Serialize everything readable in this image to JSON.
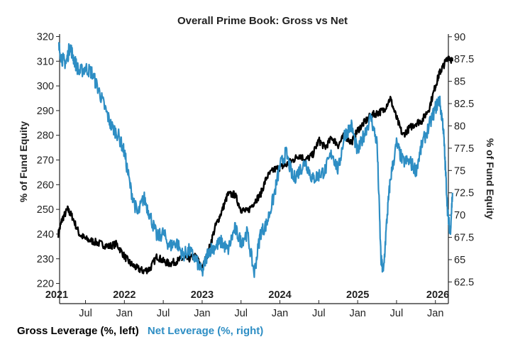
{
  "chart_data": {
    "type": "line",
    "title": "Overall Prime Book: Gross vs Net",
    "ylabel_left": "% of Fund Equity",
    "ylabel_right": "% of Fund Equity",
    "y_left": {
      "range": [
        217,
        321
      ],
      "ticks": [
        220,
        230,
        240,
        250,
        260,
        270,
        280,
        290,
        300,
        310,
        320
      ]
    },
    "y_right": {
      "range": [
        61.5,
        90.3
      ],
      "ticks": [
        62.5,
        65,
        67.5,
        70,
        72.5,
        75,
        77.5,
        80,
        82.5,
        85,
        87.5,
        90
      ],
      "tick_labels": [
        "62.5",
        "65",
        "67.5",
        "70",
        "72.5",
        "75",
        "77.5",
        "80",
        "82.5",
        "85",
        "87.5",
        "90"
      ]
    },
    "x_range": [
      "2021-03",
      "2026-03"
    ],
    "month_ticks": [
      {
        "label": "Jul",
        "t": 2021.5
      },
      {
        "label": "Jan",
        "t": 2022.0
      },
      {
        "label": "Jul",
        "t": 2022.5
      },
      {
        "label": "Jan",
        "t": 2023.0
      },
      {
        "label": "Jul",
        "t": 2023.5
      },
      {
        "label": "Jan",
        "t": 2024.0
      },
      {
        "label": "Jul",
        "t": 2024.5
      },
      {
        "label": "Jan",
        "t": 2025.0
      },
      {
        "label": "Jul",
        "t": 2025.5
      },
      {
        "label": "Jan",
        "t": 2026.0
      }
    ],
    "year_labels": [
      {
        "label": "2021",
        "t": 2021.13
      },
      {
        "label": "2022",
        "t": 2022.0
      },
      {
        "label": "2023",
        "t": 2023.0
      },
      {
        "label": "2024",
        "t": 2024.0
      },
      {
        "label": "2025",
        "t": 2025.0
      },
      {
        "label": "2026",
        "t": 2026.03
      }
    ],
    "series": [
      {
        "name": "Gross Leverage (%, left)",
        "axis": "left",
        "color": "#000000",
        "x": [
          2021.15,
          2021.2,
          2021.27,
          2021.33,
          2021.42,
          2021.5,
          2021.6,
          2021.7,
          2021.8,
          2021.9,
          2022.0,
          2022.08,
          2022.17,
          2022.25,
          2022.33,
          2022.42,
          2022.5,
          2022.58,
          2022.67,
          2022.75,
          2022.83,
          2022.92,
          2023.0,
          2023.08,
          2023.17,
          2023.25,
          2023.33,
          2023.42,
          2023.5,
          2023.58,
          2023.67,
          2023.75,
          2023.83,
          2023.92,
          2024.0,
          2024.08,
          2024.17,
          2024.25,
          2024.33,
          2024.42,
          2024.5,
          2024.58,
          2024.67,
          2024.75,
          2024.83,
          2024.92,
          2025.0,
          2025.08,
          2025.17,
          2025.25,
          2025.33,
          2025.42,
          2025.5,
          2025.58,
          2025.67,
          2025.75,
          2025.83,
          2025.92,
          2026.0,
          2026.05,
          2026.1,
          2026.17,
          2026.22
        ],
        "values": [
          240,
          246,
          250,
          247,
          240,
          238,
          237,
          236,
          235,
          236,
          231,
          228,
          226,
          225,
          226,
          231,
          229,
          228,
          229,
          230,
          230,
          231,
          226,
          233,
          243,
          249,
          256,
          256,
          250,
          249,
          253,
          256,
          263,
          266,
          267,
          268,
          270,
          272,
          270,
          272,
          278,
          275,
          279,
          276,
          280,
          277,
          282,
          285,
          288,
          289,
          290,
          295,
          287,
          280,
          283,
          285,
          286,
          291,
          300,
          305,
          308,
          312,
          310
        ]
      },
      {
        "name": "Net Leverage (%, right)",
        "axis": "right",
        "color": "#2e8ec4",
        "x": [
          2021.15,
          2021.2,
          2021.25,
          2021.3,
          2021.35,
          2021.42,
          2021.5,
          2021.58,
          2021.67,
          2021.75,
          2021.83,
          2021.92,
          2022.0,
          2022.08,
          2022.17,
          2022.25,
          2022.33,
          2022.42,
          2022.5,
          2022.58,
          2022.67,
          2022.75,
          2022.83,
          2022.92,
          2023.0,
          2023.08,
          2023.17,
          2023.25,
          2023.33,
          2023.42,
          2023.5,
          2023.58,
          2023.67,
          2023.75,
          2023.83,
          2023.92,
          2024.0,
          2024.08,
          2024.17,
          2024.25,
          2024.33,
          2024.42,
          2024.5,
          2024.58,
          2024.67,
          2024.75,
          2024.83,
          2024.92,
          2025.0,
          2025.08,
          2025.17,
          2025.25,
          2025.3,
          2025.33,
          2025.38,
          2025.42,
          2025.5,
          2025.58,
          2025.67,
          2025.75,
          2025.83,
          2025.92,
          2026.0,
          2026.05,
          2026.1,
          2026.13,
          2026.16,
          2026.19,
          2026.22
        ],
        "values": [
          89,
          87.5,
          87,
          89,
          87.5,
          86,
          86.5,
          86,
          84,
          82,
          80,
          79,
          77,
          73,
          70,
          72,
          70,
          67.5,
          68,
          66.5,
          67,
          65.5,
          66,
          65,
          63.5,
          66,
          66.5,
          67,
          66,
          68.5,
          67,
          68,
          63.5,
          68,
          69,
          72,
          75.5,
          77,
          74,
          75,
          76,
          74,
          74.5,
          75,
          77,
          75,
          79,
          80,
          77,
          79,
          81,
          78,
          65,
          63.5,
          70,
          74,
          78,
          76,
          76,
          75,
          78,
          80,
          82,
          83,
          80,
          75,
          70,
          68,
          72.5
        ]
      }
    ]
  },
  "legend": {
    "gross": {
      "label": "Gross Leverage (%, left)",
      "color": "#000000"
    },
    "net": {
      "label": "Net Leverage (%, right)",
      "color": "#2e8ec4"
    }
  }
}
